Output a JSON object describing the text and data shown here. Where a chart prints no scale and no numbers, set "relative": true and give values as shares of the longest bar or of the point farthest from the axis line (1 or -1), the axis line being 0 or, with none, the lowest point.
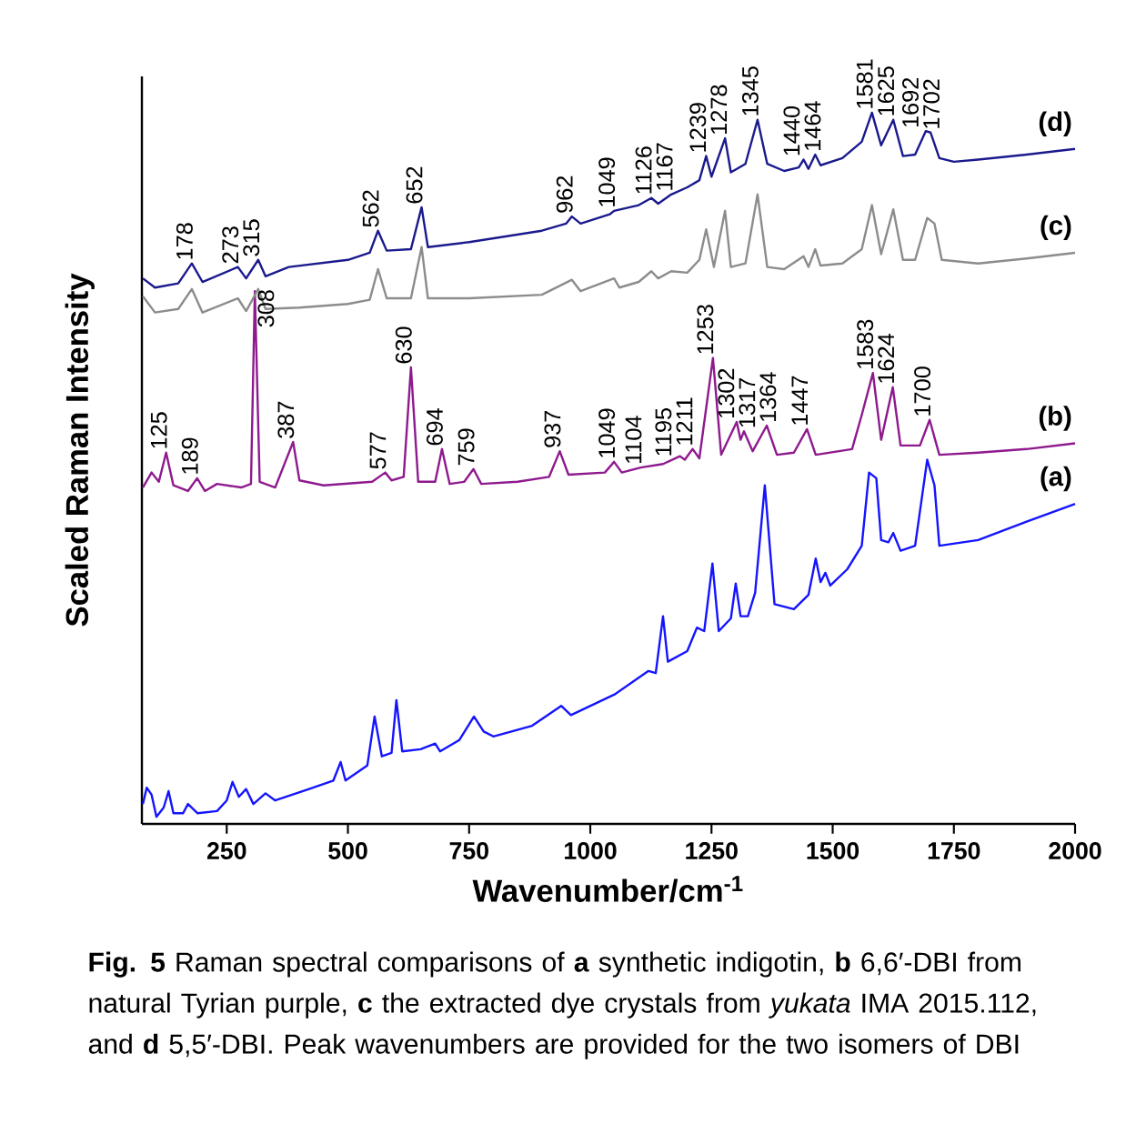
{
  "chart_data": {
    "type": "line",
    "relative": true,
    "marker": "none",
    "xlabel": "Wavenumber/cm$^{-1}$",
    "ylabel": "Scaled Raman Intensity",
    "xlim": [
      75,
      2000
    ],
    "xticks": [
      250,
      500,
      750,
      1000,
      1250,
      1500,
      1750,
      2000
    ],
    "series": [
      {
        "name": "(a)",
        "color": "#1414ff",
        "x": [
          77,
          85,
          95,
          105,
          120,
          130,
          140,
          160,
          170,
          190,
          230,
          250,
          262,
          275,
          290,
          305,
          330,
          350,
          420,
          470,
          485,
          495,
          540,
          555,
          570,
          590,
          600,
          612,
          650,
          680,
          690,
          730,
          760,
          780,
          800,
          880,
          940,
          960,
          1050,
          1120,
          1135,
          1150,
          1160,
          1200,
          1220,
          1235,
          1252,
          1265,
          1290,
          1300,
          1310,
          1325,
          1340,
          1360,
          1380,
          1420,
          1450,
          1465,
          1475,
          1485,
          1495,
          1530,
          1560,
          1575,
          1590,
          1600,
          1615,
          1625,
          1640,
          1670,
          1695,
          1710,
          1720,
          1800,
          1900,
          2000
        ],
        "values": [
          0.028,
          0.051,
          0.041,
          0.01,
          0.023,
          0.046,
          0.015,
          0.015,
          0.028,
          0.015,
          0.018,
          0.033,
          0.059,
          0.038,
          0.049,
          0.028,
          0.043,
          0.033,
          0.049,
          0.061,
          0.087,
          0.061,
          0.082,
          0.151,
          0.095,
          0.1,
          0.174,
          0.102,
          0.105,
          0.113,
          0.102,
          0.118,
          0.151,
          0.13,
          0.123,
          0.138,
          0.166,
          0.153,
          0.182,
          0.215,
          0.212,
          0.292,
          0.228,
          0.243,
          0.276,
          0.271,
          0.366,
          0.271,
          0.289,
          0.338,
          0.292,
          0.292,
          0.325,
          0.476,
          0.309,
          0.302,
          0.322,
          0.373,
          0.34,
          0.353,
          0.335,
          0.358,
          0.391,
          0.494,
          0.486,
          0.399,
          0.396,
          0.409,
          0.384,
          0.391,
          0.512,
          0.476,
          0.391,
          0.399,
          0.425,
          0.45
        ]
      },
      {
        "name": "(b)",
        "color": "#8e1a8e",
        "x": [
          77,
          95,
          110,
          125,
          140,
          170,
          189,
          205,
          230,
          280,
          300,
          308,
          318,
          350,
          387,
          400,
          450,
          550,
          577,
          590,
          615,
          630,
          645,
          680,
          694,
          710,
          740,
          759,
          775,
          850,
          915,
          937,
          955,
          1030,
          1049,
          1065,
          1104,
          1150,
          1185,
          1195,
          1211,
          1225,
          1253,
          1270,
          1302,
          1310,
          1317,
          1335,
          1364,
          1385,
          1420,
          1447,
          1465,
          1540,
          1560,
          1583,
          1600,
          1624,
          1640,
          1680,
          1700,
          1720,
          1800,
          1900,
          2000
        ],
        "values": [
          0.473,
          0.494,
          0.481,
          0.522,
          0.476,
          0.468,
          0.486,
          0.468,
          0.478,
          0.473,
          0.478,
          0.749,
          0.481,
          0.473,
          0.537,
          0.483,
          0.476,
          0.481,
          0.494,
          0.483,
          0.488,
          0.642,
          0.481,
          0.481,
          0.527,
          0.478,
          0.481,
          0.499,
          0.478,
          0.481,
          0.488,
          0.524,
          0.491,
          0.494,
          0.509,
          0.494,
          0.501,
          0.506,
          0.517,
          0.512,
          0.527,
          0.514,
          0.655,
          0.519,
          0.565,
          0.54,
          0.552,
          0.524,
          0.56,
          0.519,
          0.522,
          0.555,
          0.519,
          0.527,
          0.575,
          0.634,
          0.54,
          0.614,
          0.532,
          0.532,
          0.568,
          0.519,
          0.522,
          0.527,
          0.535
        ]
      },
      {
        "name": "(c)",
        "color": "#8c8c8c",
        "x": [
          77,
          102,
          150,
          178,
          200,
          273,
          290,
          315,
          330,
          400,
          500,
          545,
          562,
          580,
          630,
          652,
          665,
          750,
          900,
          962,
          980,
          1049,
          1060,
          1100,
          1126,
          1140,
          1167,
          1200,
          1225,
          1239,
          1255,
          1278,
          1290,
          1320,
          1345,
          1365,
          1400,
          1440,
          1450,
          1464,
          1475,
          1520,
          1560,
          1581,
          1600,
          1625,
          1645,
          1670,
          1695,
          1710,
          1725,
          1800,
          1900,
          2000
        ],
        "values": [
          0.742,
          0.719,
          0.724,
          0.752,
          0.719,
          0.739,
          0.721,
          0.752,
          0.724,
          0.726,
          0.731,
          0.737,
          0.78,
          0.739,
          0.739,
          0.811,
          0.739,
          0.739,
          0.744,
          0.765,
          0.749,
          0.767,
          0.754,
          0.762,
          0.777,
          0.767,
          0.777,
          0.775,
          0.793,
          0.836,
          0.783,
          0.862,
          0.783,
          0.788,
          0.885,
          0.783,
          0.78,
          0.798,
          0.783,
          0.808,
          0.785,
          0.788,
          0.808,
          0.87,
          0.801,
          0.864,
          0.793,
          0.793,
          0.852,
          0.844,
          0.793,
          0.788,
          0.795,
          0.803
        ]
      },
      {
        "name": "(d)",
        "color": "#1a1a8e",
        "x": [
          77,
          102,
          150,
          178,
          200,
          273,
          290,
          315,
          330,
          378,
          500,
          545,
          562,
          580,
          630,
          652,
          665,
          750,
          900,
          950,
          962,
          980,
          1040,
          1049,
          1100,
          1126,
          1140,
          1167,
          1200,
          1225,
          1239,
          1250,
          1278,
          1290,
          1320,
          1345,
          1365,
          1400,
          1430,
          1440,
          1450,
          1464,
          1475,
          1520,
          1560,
          1581,
          1600,
          1625,
          1645,
          1670,
          1692,
          1702,
          1720,
          1750,
          1800,
          1900,
          2000
        ],
        "values": [
          0.767,
          0.754,
          0.76,
          0.788,
          0.762,
          0.783,
          0.767,
          0.793,
          0.77,
          0.783,
          0.793,
          0.803,
          0.834,
          0.806,
          0.808,
          0.867,
          0.811,
          0.818,
          0.834,
          0.844,
          0.854,
          0.844,
          0.857,
          0.862,
          0.87,
          0.88,
          0.872,
          0.885,
          0.895,
          0.905,
          0.939,
          0.91,
          0.964,
          0.916,
          0.928,
          0.99,
          0.928,
          0.918,
          0.923,
          0.934,
          0.921,
          0.941,
          0.926,
          0.936,
          0.959,
          1,
          0.954,
          0.99,
          0.939,
          0.941,
          0.974,
          0.972,
          0.936,
          0.931,
          0.934,
          0.941,
          0.949
        ]
      }
    ],
    "annotations": [
      {
        "text": "178",
        "x": 178,
        "y": 0.788
      },
      {
        "text": "273",
        "x": 273,
        "y": 0.783
      },
      {
        "text": "315",
        "x": 315,
        "y": 0.793
      },
      {
        "text": "562",
        "x": 562,
        "y": 0.834
      },
      {
        "text": "652",
        "x": 652,
        "y": 0.867
      },
      {
        "text": "962",
        "x": 962,
        "y": 0.854
      },
      {
        "text": "1049",
        "x": 1049,
        "y": 0.862
      },
      {
        "text": "1126",
        "x": 1126,
        "y": 0.88
      },
      {
        "text": "1167",
        "x": 1167,
        "y": 0.885
      },
      {
        "text": "1239",
        "x": 1239,
        "y": 0.939
      },
      {
        "text": "1278",
        "x": 1278,
        "y": 0.964
      },
      {
        "text": "1345",
        "x": 1345,
        "y": 0.99
      },
      {
        "text": "1440",
        "x": 1440,
        "y": 0.934
      },
      {
        "text": "1464",
        "x": 1464,
        "y": 0.941
      },
      {
        "text": "1581",
        "x": 1581,
        "y": 1
      },
      {
        "text": "1625",
        "x": 1625,
        "y": 0.99
      },
      {
        "text": "1692",
        "x": 1692,
        "y": 0.974
      },
      {
        "text": "1702",
        "x": 1702,
        "y": 0.972
      },
      {
        "text": "125",
        "x": 125,
        "y": 0.522
      },
      {
        "text": "189",
        "x": 189,
        "y": 0.486
      },
      {
        "text": "308",
        "x": 308,
        "y": 0.749
      },
      {
        "text": "387",
        "x": 387,
        "y": 0.537
      },
      {
        "text": "577",
        "x": 577,
        "y": 0.494
      },
      {
        "text": "630",
        "x": 630,
        "y": 0.642
      },
      {
        "text": "694",
        "x": 694,
        "y": 0.527
      },
      {
        "text": "759",
        "x": 759,
        "y": 0.499
      },
      {
        "text": "937",
        "x": 937,
        "y": 0.524
      },
      {
        "text": "1049",
        "x": 1049,
        "y": 0.509
      },
      {
        "text": "1104",
        "x": 1104,
        "y": 0.501
      },
      {
        "text": "1195",
        "x": 1195,
        "y": 0.512
      },
      {
        "text": "1211",
        "x": 1211,
        "y": 0.527
      },
      {
        "text": "1253",
        "x": 1253,
        "y": 0.655
      },
      {
        "text": "1302",
        "x": 1302,
        "y": 0.565
      },
      {
        "text": "1317",
        "x": 1317,
        "y": 0.552
      },
      {
        "text": "1364",
        "x": 1364,
        "y": 0.56
      },
      {
        "text": "1447",
        "x": 1447,
        "y": 0.555
      },
      {
        "text": "1583",
        "x": 1583,
        "y": 0.634
      },
      {
        "text": "1624",
        "x": 1624,
        "y": 0.614
      },
      {
        "text": "1700",
        "x": 1700,
        "y": 0.568
      },
      "**Fig. 5** Raman spectral comparisons of **a** synthetic indigotin, **b** 6,6′-DBI from natural Tyrian purple, **c** the extracted dye crystals from *yukata* IMA 2015.112, and **d** 5,5′-DBI. Peak wavenumbers are provided for the two isomers of DBI"
    ]
  }
}
